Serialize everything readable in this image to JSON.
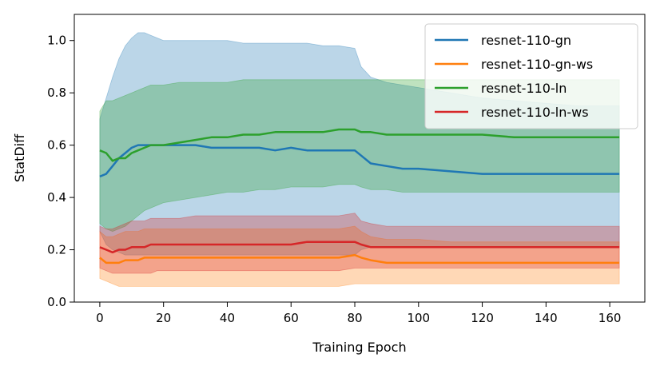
{
  "chart_data": {
    "type": "line",
    "title": "",
    "xlabel": "Training Epoch",
    "ylabel": "StatDiff",
    "xlim": [
      -8,
      171
    ],
    "ylim": [
      0.0,
      1.1
    ],
    "x_ticks": [
      0,
      20,
      40,
      60,
      80,
      100,
      120,
      140,
      160
    ],
    "y_ticks": [
      0.0,
      0.2,
      0.4,
      0.6,
      0.8,
      1.0
    ],
    "x_tick_labels": [
      "0",
      "20",
      "40",
      "60",
      "80",
      "100",
      "120",
      "140",
      "160"
    ],
    "y_tick_labels": [
      "0.0",
      "0.2",
      "0.4",
      "0.6",
      "0.8",
      "1.0"
    ],
    "legend_position": "top-right",
    "x": [
      0,
      2,
      4,
      6,
      8,
      10,
      12,
      14,
      16,
      18,
      20,
      25,
      30,
      35,
      40,
      45,
      50,
      55,
      60,
      65,
      70,
      75,
      80,
      82,
      85,
      90,
      95,
      100,
      110,
      120,
      130,
      140,
      150,
      163
    ],
    "series": [
      {
        "name": "resnet-110-gn",
        "color": "#1f77b4",
        "mean": [
          0.48,
          0.49,
          0.52,
          0.55,
          0.57,
          0.59,
          0.6,
          0.6,
          0.6,
          0.6,
          0.6,
          0.6,
          0.6,
          0.59,
          0.59,
          0.59,
          0.59,
          0.58,
          0.59,
          0.58,
          0.58,
          0.58,
          0.58,
          0.56,
          0.53,
          0.52,
          0.51,
          0.51,
          0.5,
          0.49,
          0.49,
          0.49,
          0.49,
          0.49
        ],
        "upper": [
          0.7,
          0.78,
          0.86,
          0.93,
          0.98,
          1.01,
          1.03,
          1.03,
          1.02,
          1.01,
          1.0,
          1.0,
          1.0,
          1.0,
          1.0,
          0.99,
          0.99,
          0.99,
          0.99,
          0.99,
          0.98,
          0.98,
          0.97,
          0.9,
          0.86,
          0.84,
          0.83,
          0.82,
          0.8,
          0.78,
          0.77,
          0.76,
          0.75,
          0.75
        ],
        "lower": [
          0.27,
          0.22,
          0.2,
          0.19,
          0.18,
          0.18,
          0.18,
          0.18,
          0.18,
          0.18,
          0.18,
          0.18,
          0.18,
          0.18,
          0.18,
          0.18,
          0.18,
          0.18,
          0.18,
          0.18,
          0.18,
          0.18,
          0.18,
          0.2,
          0.21,
          0.21,
          0.21,
          0.21,
          0.21,
          0.21,
          0.21,
          0.21,
          0.21,
          0.21
        ]
      },
      {
        "name": "resnet-110-gn-ws",
        "color": "#ff7f0e",
        "mean": [
          0.17,
          0.15,
          0.15,
          0.15,
          0.16,
          0.16,
          0.16,
          0.17,
          0.17,
          0.17,
          0.17,
          0.17,
          0.17,
          0.17,
          0.17,
          0.17,
          0.17,
          0.17,
          0.17,
          0.17,
          0.17,
          0.17,
          0.18,
          0.17,
          0.16,
          0.15,
          0.15,
          0.15,
          0.15,
          0.15,
          0.15,
          0.15,
          0.15,
          0.15
        ],
        "upper": [
          0.27,
          0.25,
          0.25,
          0.26,
          0.27,
          0.27,
          0.27,
          0.28,
          0.28,
          0.28,
          0.28,
          0.28,
          0.28,
          0.28,
          0.28,
          0.28,
          0.28,
          0.28,
          0.28,
          0.28,
          0.28,
          0.28,
          0.29,
          0.27,
          0.25,
          0.24,
          0.24,
          0.24,
          0.23,
          0.23,
          0.23,
          0.23,
          0.23,
          0.23
        ],
        "lower": [
          0.09,
          0.08,
          0.07,
          0.06,
          0.06,
          0.06,
          0.06,
          0.06,
          0.06,
          0.06,
          0.06,
          0.06,
          0.06,
          0.06,
          0.06,
          0.06,
          0.06,
          0.06,
          0.06,
          0.06,
          0.06,
          0.06,
          0.07,
          0.07,
          0.07,
          0.07,
          0.07,
          0.07,
          0.07,
          0.07,
          0.07,
          0.07,
          0.07,
          0.07
        ]
      },
      {
        "name": "resnet-110-ln",
        "color": "#2ca02c",
        "mean": [
          0.58,
          0.57,
          0.54,
          0.55,
          0.55,
          0.57,
          0.58,
          0.59,
          0.6,
          0.6,
          0.6,
          0.61,
          0.62,
          0.63,
          0.63,
          0.64,
          0.64,
          0.65,
          0.65,
          0.65,
          0.65,
          0.66,
          0.66,
          0.65,
          0.65,
          0.64,
          0.64,
          0.64,
          0.64,
          0.64,
          0.63,
          0.63,
          0.63,
          0.63
        ],
        "upper": [
          0.73,
          0.77,
          0.77,
          0.78,
          0.79,
          0.8,
          0.81,
          0.82,
          0.83,
          0.83,
          0.83,
          0.84,
          0.84,
          0.84,
          0.84,
          0.85,
          0.85,
          0.85,
          0.85,
          0.85,
          0.85,
          0.85,
          0.85,
          0.85,
          0.85,
          0.85,
          0.85,
          0.85,
          0.85,
          0.85,
          0.85,
          0.85,
          0.85,
          0.85
        ],
        "lower": [
          0.3,
          0.28,
          0.27,
          0.28,
          0.29,
          0.31,
          0.33,
          0.35,
          0.36,
          0.37,
          0.38,
          0.39,
          0.4,
          0.41,
          0.42,
          0.42,
          0.43,
          0.43,
          0.44,
          0.44,
          0.44,
          0.45,
          0.45,
          0.44,
          0.43,
          0.43,
          0.42,
          0.42,
          0.42,
          0.42,
          0.42,
          0.42,
          0.42,
          0.42
        ]
      },
      {
        "name": "resnet-110-ln-ws",
        "color": "#d62728",
        "mean": [
          0.21,
          0.2,
          0.19,
          0.2,
          0.2,
          0.21,
          0.21,
          0.21,
          0.22,
          0.22,
          0.22,
          0.22,
          0.22,
          0.22,
          0.22,
          0.22,
          0.22,
          0.22,
          0.22,
          0.23,
          0.23,
          0.23,
          0.23,
          0.22,
          0.21,
          0.21,
          0.21,
          0.21,
          0.21,
          0.21,
          0.21,
          0.21,
          0.21,
          0.21
        ],
        "upper": [
          0.29,
          0.28,
          0.28,
          0.29,
          0.3,
          0.31,
          0.31,
          0.31,
          0.32,
          0.32,
          0.32,
          0.32,
          0.33,
          0.33,
          0.33,
          0.33,
          0.33,
          0.33,
          0.33,
          0.33,
          0.33,
          0.33,
          0.34,
          0.31,
          0.3,
          0.29,
          0.29,
          0.29,
          0.29,
          0.29,
          0.29,
          0.29,
          0.29,
          0.29
        ],
        "lower": [
          0.13,
          0.12,
          0.11,
          0.11,
          0.11,
          0.11,
          0.11,
          0.11,
          0.11,
          0.12,
          0.12,
          0.12,
          0.12,
          0.12,
          0.12,
          0.12,
          0.12,
          0.12,
          0.12,
          0.12,
          0.12,
          0.12,
          0.13,
          0.13,
          0.13,
          0.13,
          0.13,
          0.13,
          0.13,
          0.13,
          0.13,
          0.13,
          0.13,
          0.13
        ]
      }
    ]
  }
}
